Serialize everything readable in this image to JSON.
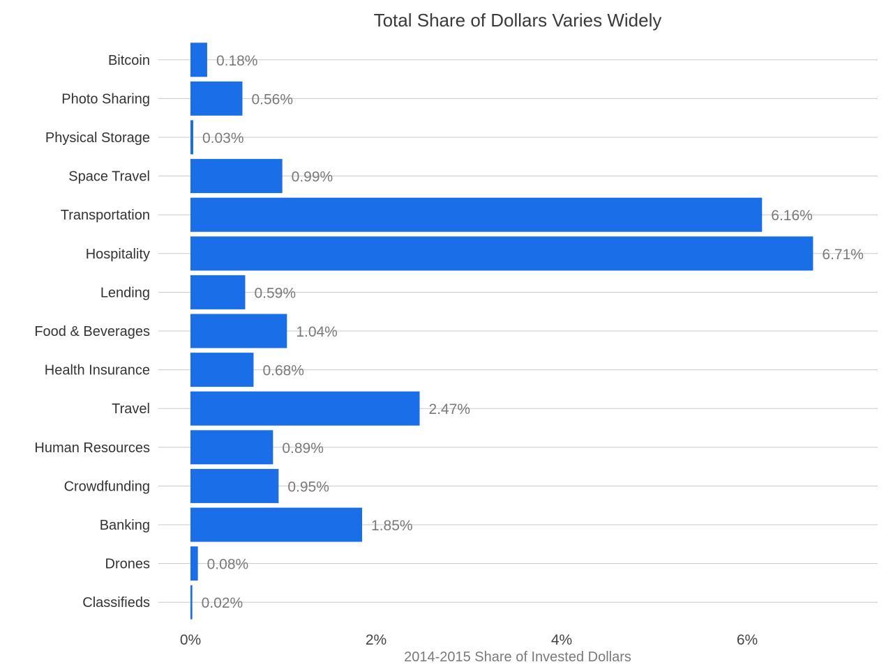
{
  "chart_data": {
    "type": "bar",
    "orientation": "horizontal",
    "title": "Total Share of Dollars Varies Widely",
    "xlabel": "2014-2015 Share of Invested Dollars",
    "ylabel": "",
    "categories": [
      "Bitcoin",
      "Photo Sharing",
      "Physical Storage",
      "Space Travel",
      "Transportation",
      "Hospitality",
      "Lending",
      "Food & Beverages",
      "Health Insurance",
      "Travel",
      "Human Resources",
      "Crowdfunding",
      "Banking",
      "Drones",
      "Classifieds"
    ],
    "values": [
      0.18,
      0.56,
      0.03,
      0.99,
      6.16,
      6.71,
      0.59,
      1.04,
      0.68,
      2.47,
      0.89,
      0.95,
      1.85,
      0.08,
      0.02
    ],
    "value_labels": [
      "0.18%",
      "0.56%",
      "0.03%",
      "0.99%",
      "6.16%",
      "6.71%",
      "0.59%",
      "1.04%",
      "0.68%",
      "2.47%",
      "0.89%",
      "0.95%",
      "1.85%",
      "0.08%",
      "0.02%"
    ],
    "xticks": [
      0,
      2,
      4,
      6
    ],
    "xtick_labels": [
      "0%",
      "2%",
      "4%",
      "6%"
    ],
    "xlim": [
      0,
      7.5
    ],
    "grid": "horizontal",
    "legend": "none",
    "bar_color": "#1a6fe8"
  }
}
